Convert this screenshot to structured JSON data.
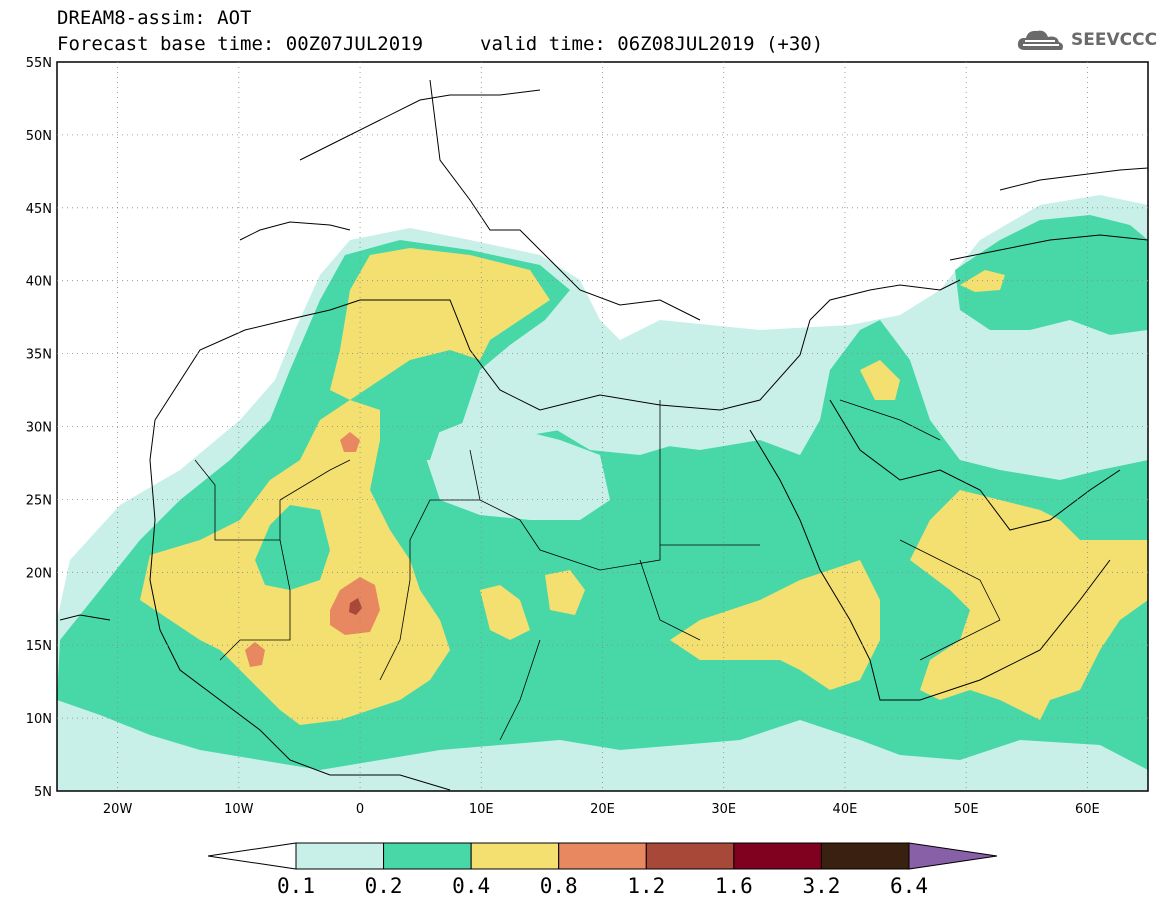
{
  "header": {
    "title_line1": "DREAM8-assim: AOT",
    "title_line2": "Forecast base time: 00Z07JUL2019",
    "valid_time": "valid time: 06Z08JUL2019 (+30)",
    "logo_text": "SEEVCCC"
  },
  "chart_data": {
    "type": "map",
    "variable": "AOT",
    "lat_range": [
      5,
      55
    ],
    "lon_range": [
      -25,
      65
    ],
    "lat_ticks": [
      "55N",
      "50N",
      "45N",
      "40N",
      "35N",
      "30N",
      "25N",
      "20N",
      "15N",
      "10N",
      "5N"
    ],
    "lon_ticks": [
      "20W",
      "10W",
      "0",
      "10E",
      "20E",
      "30E",
      "40E",
      "50E",
      "60E"
    ],
    "colorbar": {
      "levels": [
        "0.1",
        "0.2",
        "0.4",
        "0.8",
        "1.2",
        "1.6",
        "3.2",
        "6.4"
      ],
      "colors": [
        "#ffffff",
        "#c8f0e8",
        "#48d8a8",
        "#f4e070",
        "#e88860",
        "#a84838",
        "#800020",
        "#3a2010",
        "#8860a8"
      ]
    },
    "regions": [
      {
        "name": "outer",
        "level_min": 0.1,
        "color": "#c8f0e8"
      },
      {
        "name": "sahara-band",
        "level_min": 0.2,
        "color": "#48d8a8"
      },
      {
        "name": "west-sahara-core",
        "level_min": 0.4,
        "color": "#f4e070"
      },
      {
        "name": "mali-niger-hotspot",
        "level_min": 0.8,
        "color": "#e88860"
      },
      {
        "name": "mali-peak",
        "level_min": 1.2,
        "color": "#a84838"
      }
    ]
  }
}
